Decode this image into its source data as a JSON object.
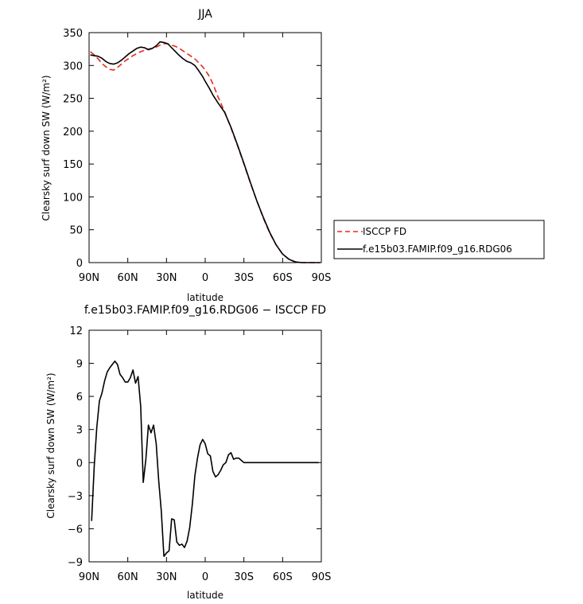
{
  "chart_data": [
    {
      "type": "line",
      "title": "JJA",
      "xlabel": "latitude",
      "ylabel": "Clearsky surf down SW (W/m²)",
      "xlim": [
        90,
        -90
      ],
      "ylim": [
        0,
        350
      ],
      "x_ticks": [
        90,
        60,
        30,
        0,
        -30,
        -60,
        -90
      ],
      "x_tick_labels": [
        "90N",
        "60N",
        "30N",
        "0",
        "30S",
        "60S",
        "90S"
      ],
      "y_ticks": [
        0,
        50,
        100,
        150,
        200,
        250,
        300,
        350
      ],
      "y_tick_labels": [
        "0",
        "50",
        "100",
        "150",
        "200",
        "250",
        "300",
        "350"
      ],
      "legend_position": "right-bottom outside",
      "series": [
        {
          "name": "ISCCP FD",
          "color": "#e8281e",
          "dash": "dashed",
          "x": [
            89,
            86,
            83,
            80,
            77,
            74,
            71,
            68,
            65,
            62,
            59,
            56,
            53,
            50,
            47,
            44,
            41,
            38,
            35,
            32,
            29,
            26,
            23,
            20,
            17,
            14,
            11,
            8,
            5,
            2,
            0,
            -3,
            -6,
            -10,
            -15,
            -20,
            -25,
            -30,
            -35,
            -40,
            -45,
            -50,
            -55,
            -60,
            -65,
            -70,
            -75,
            -80,
            -85,
            -89
          ],
          "values": [
            321,
            316,
            310,
            303,
            298,
            294,
            293,
            297,
            302,
            307,
            311,
            315,
            318,
            321,
            323,
            325,
            326,
            328,
            331,
            333,
            333,
            331,
            329,
            326,
            322,
            318,
            314,
            310,
            304,
            298,
            293,
            284,
            272,
            252,
            230,
            205,
            178,
            150,
            121,
            94,
            68,
            45,
            27,
            13,
            5,
            1,
            0,
            0,
            0,
            0
          ]
        },
        {
          "name": "f.e15b03.FAMIP.f09_g16.RDG06",
          "color": "#000000",
          "dash": "solid",
          "x": [
            89,
            86,
            83,
            80,
            77,
            74,
            71,
            68,
            65,
            62,
            59,
            56,
            53,
            50,
            47,
            44,
            41,
            38,
            35,
            32,
            29,
            26,
            23,
            20,
            17,
            14,
            11,
            8,
            5,
            2,
            0,
            -3,
            -6,
            -10,
            -15,
            -20,
            -25,
            -30,
            -35,
            -40,
            -45,
            -50,
            -55,
            -60,
            -65,
            -70,
            -75,
            -80,
            -85,
            -89
          ],
          "values": [
            316,
            315,
            314,
            311,
            306,
            303,
            302,
            304,
            308,
            313,
            318,
            322,
            326,
            328,
            327,
            324,
            326,
            330,
            336,
            335,
            333,
            327,
            321,
            315,
            310,
            306,
            304,
            300,
            292,
            283,
            276,
            266,
            255,
            243,
            229,
            206,
            179,
            151,
            122,
            94,
            69,
            46,
            27,
            13,
            5,
            1,
            0,
            0,
            0,
            0
          ]
        }
      ]
    },
    {
      "type": "line",
      "title": "f.e15b03.FAMIP.f09_g16.RDG06 − ISCCP FD",
      "xlabel": "latitude",
      "ylabel": "Clearsky surf down SW (W/m²)",
      "xlim": [
        90,
        -90
      ],
      "ylim": [
        -9,
        12
      ],
      "x_ticks": [
        90,
        60,
        30,
        0,
        -30,
        -60,
        -90
      ],
      "x_tick_labels": [
        "90N",
        "60N",
        "30N",
        "0",
        "30S",
        "60S",
        "90S"
      ],
      "y_ticks": [
        -9,
        -6,
        -3,
        0,
        3,
        6,
        9,
        12
      ],
      "y_tick_labels": [
        "−9",
        "−6",
        "−3",
        "0",
        "3",
        "6",
        "9",
        "12"
      ],
      "series": [
        {
          "color": "#000000",
          "dash": "solid",
          "x": [
            88,
            86,
            84,
            82,
            80,
            78,
            76,
            74,
            72,
            70,
            68,
            66,
            64,
            62,
            60,
            58,
            56,
            54,
            52,
            50,
            48,
            46,
            44,
            42,
            40,
            38,
            36,
            34,
            32,
            30,
            28,
            26,
            24,
            22,
            20,
            18,
            16,
            14,
            12,
            10,
            8,
            6,
            4,
            2,
            0,
            -2,
            -4,
            -6,
            -8,
            -10,
            -12,
            -14,
            -16,
            -18,
            -20,
            -22,
            -24,
            -26,
            -28,
            -30,
            -32,
            -34,
            -36,
            -38,
            -40,
            -42,
            -44,
            -46,
            -48,
            -50,
            -52,
            -54,
            -56,
            -58,
            -60,
            -62,
            -64,
            -66,
            -68,
            -70,
            -72,
            -74,
            -76,
            -78,
            -80,
            -82,
            -84,
            -86,
            -88
          ],
          "values": [
            -5.3,
            -0.3,
            3.2,
            5.6,
            6.3,
            7.4,
            8.2,
            8.6,
            8.9,
            9.2,
            8.9,
            8.0,
            7.7,
            7.3,
            7.3,
            7.7,
            8.4,
            7.2,
            7.8,
            5.1,
            -1.8,
            0.3,
            3.4,
            2.7,
            3.4,
            1.7,
            -1.7,
            -4.4,
            -8.5,
            -8.2,
            -8.0,
            -5.1,
            -5.2,
            -7.2,
            -7.5,
            -7.4,
            -7.7,
            -7.1,
            -5.9,
            -3.8,
            -1.2,
            0.4,
            1.6,
            2.1,
            1.7,
            0.8,
            0.6,
            -0.8,
            -1.3,
            -1.1,
            -0.7,
            -0.2,
            0.0,
            0.7,
            0.9,
            0.3,
            0.4,
            0.4,
            0.2,
            0.0,
            0.0,
            0.0,
            0.0,
            0.0,
            0.0,
            0.0,
            0.0,
            0.0,
            0.0,
            0.0,
            0.0,
            0.0,
            0.0,
            0.0,
            0.0,
            0.0,
            0.0,
            0.0,
            0.0,
            0.0,
            0.0,
            0.0,
            0.0,
            0.0,
            0.0,
            0.0,
            0.0,
            0.0,
            0.0
          ]
        }
      ]
    }
  ]
}
